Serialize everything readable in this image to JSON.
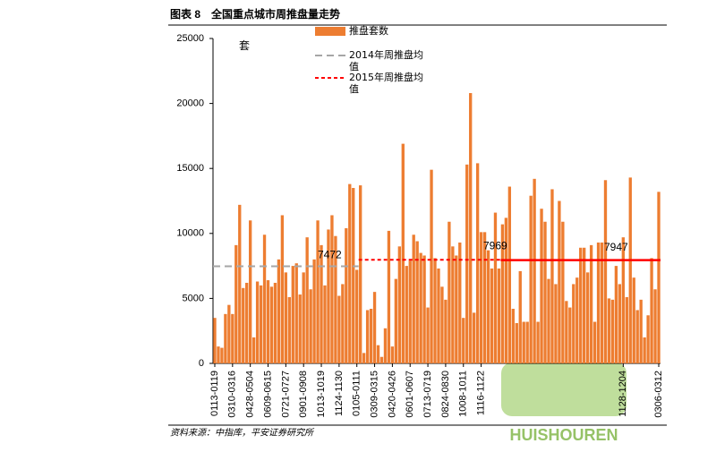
{
  "chart_data": {
    "type": "bar",
    "title": "图表 8　全国重点城市周推盘量走势",
    "y_label": "套",
    "source": "资料来源：中指库，平安证券研究所",
    "watermark": "HUISHOUREN",
    "categories": [
      "0113-0119",
      null,
      null,
      null,
      null,
      "0310-0316",
      null,
      null,
      null,
      null,
      "0428-0504",
      null,
      null,
      null,
      null,
      "0609-0615",
      null,
      null,
      null,
      null,
      "0721-0727",
      null,
      null,
      null,
      null,
      "0901-0908",
      null,
      null,
      null,
      null,
      "1013-1019",
      null,
      null,
      null,
      null,
      "1124-1130",
      null,
      null,
      null,
      null,
      "0105-0111",
      null,
      null,
      null,
      null,
      "0309-0315",
      null,
      null,
      null,
      null,
      "0420-0426",
      null,
      null,
      null,
      null,
      "0601-0607",
      null,
      null,
      null,
      null,
      "0713-0719",
      null,
      null,
      null,
      null,
      "0824-0830",
      null,
      null,
      null,
      null,
      "1008-1011",
      null,
      null,
      null,
      null,
      "1116-1122",
      null,
      null,
      null,
      null,
      null,
      null,
      null,
      null,
      null,
      null,
      null,
      null,
      null,
      null,
      null,
      null,
      null,
      null,
      null,
      null,
      null,
      null,
      null,
      null,
      null,
      null,
      null,
      null,
      null,
      null,
      null,
      null,
      null,
      null,
      null,
      null,
      null,
      null,
      null,
      "1128-1204",
      null,
      null,
      null,
      null,
      null,
      null,
      null,
      null,
      null,
      "0306-0312"
    ],
    "series": [
      {
        "name": "推盘套数",
        "color": "#ed7d31",
        "values": [
          3500,
          1300,
          1200,
          3800,
          4500,
          3800,
          9100,
          12200,
          5800,
          6200,
          11000,
          2000,
          6300,
          6000,
          9900,
          6400,
          5900,
          6200,
          8000,
          11400,
          7000,
          5100,
          7500,
          7700,
          5300,
          7000,
          9700,
          5700,
          8000,
          11000,
          9100,
          6000,
          10300,
          11400,
          9800,
          5200,
          6100,
          10400,
          13800,
          13500,
          7200,
          13700,
          800,
          4100,
          4200,
          5500,
          1400,
          500,
          2700,
          10200,
          1300,
          6500,
          9000,
          16900,
          7500,
          7900,
          9900,
          9400,
          8500,
          8300,
          4300,
          14900,
          8100,
          7300,
          5900,
          4900,
          10900,
          9000,
          8300,
          9300,
          3500,
          15300,
          20800,
          3900,
          15400,
          10100,
          10100,
          8700,
          7300,
          11600,
          7300,
          10700,
          11200,
          13600,
          4200,
          3100,
          7100,
          3200,
          3200,
          12900,
          14200,
          3200,
          11900,
          10900,
          6500,
          13400,
          6100,
          12500,
          10900,
          4800,
          4300,
          6100,
          6600,
          8900,
          8900,
          7000,
          9100,
          3200,
          9300,
          9300,
          14100,
          5000,
          4900,
          7500,
          6100,
          9700,
          5100,
          14300,
          6600,
          4100,
          4900,
          2000,
          3700,
          8100,
          5700,
          13200
        ]
      }
    ],
    "reference_lines": [
      {
        "name": "2014年周推盘均值",
        "value": 7472,
        "color": "#a6a6a6",
        "style": "dashed"
      },
      {
        "name": "2015年周推盘均值",
        "value": 7969,
        "color": "#ff0000",
        "style": "dotted"
      },
      {
        "value": 7947,
        "color": "#ff0000",
        "style": "solid"
      }
    ],
    "ylim": [
      0,
      25000
    ],
    "yticks": [
      0,
      5000,
      10000,
      15000,
      20000,
      25000
    ],
    "grid": false
  }
}
